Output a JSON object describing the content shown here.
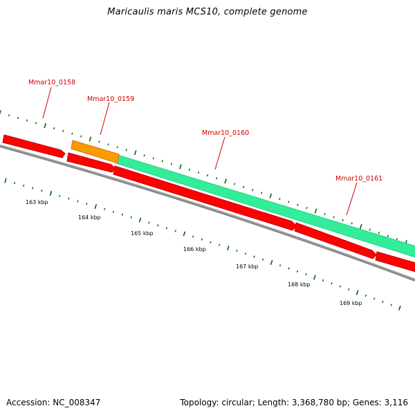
{
  "title": "Maricaulis maris MCS10, complete genome",
  "footer": {
    "accession": "Accession: NC_008347",
    "stats": "Topology: circular; Length: 3,368,780 bp; Genes: 3,116"
  },
  "colors": {
    "cds_red": "#ff0000",
    "cds_orange": "#ff9900",
    "cds_green": "#33ff99",
    "genome_line": "#888888",
    "tick_green": "#006600",
    "label_red": "#cc0000"
  },
  "gene_labels": [
    "Mmar10_0158",
    "Mmar10_0159",
    "Mmar10_0160",
    "Mmar10_0161"
  ],
  "kbp_ticks": [
    "163 kbp",
    "164 kbp",
    "165 kbp",
    "166 kbp",
    "167 kbp",
    "168 kbp",
    "169 kbp"
  ]
}
